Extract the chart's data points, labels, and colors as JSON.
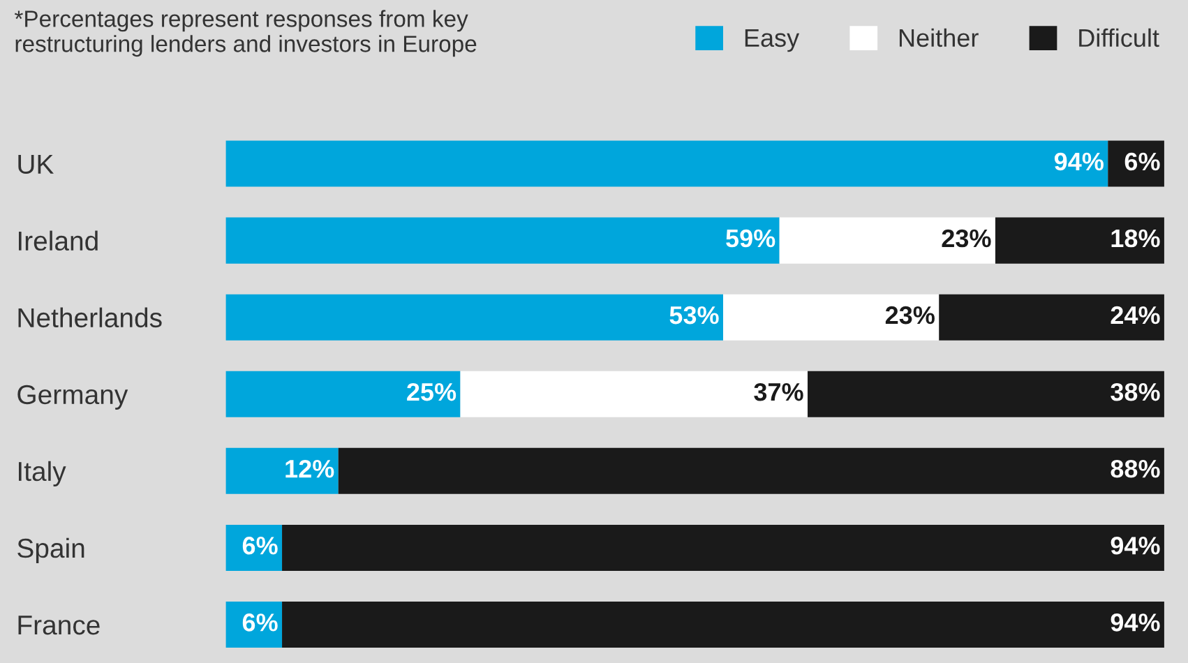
{
  "chart_data": {
    "type": "bar",
    "orientation": "horizontal",
    "stacked": true,
    "legend": "top right",
    "grid": false,
    "annotations": [
      "*Percentages represent responses from key\nrestructuring lenders and investors in Europe"
    ],
    "categories": [
      "UK",
      "Ireland",
      "Netherlands",
      "Germany",
      "Italy",
      "Spain",
      "France"
    ],
    "series": [
      {
        "name": "Easy",
        "color": "#00a6dc",
        "values": [
          94,
          59,
          53,
          25,
          12,
          6,
          6
        ],
        "value_labels": [
          "94%",
          "59%",
          "53%",
          "25%",
          "12%",
          "6%",
          "6%"
        ]
      },
      {
        "name": "Neither",
        "color": "#ffffff",
        "values": [
          0,
          23,
          23,
          37,
          0,
          0,
          0
        ],
        "value_labels": [
          null,
          "23%",
          "23%",
          "37%",
          null,
          null,
          null
        ]
      },
      {
        "name": "Difficult",
        "color": "#1a1a1a",
        "values": [
          6,
          18,
          24,
          38,
          88,
          94,
          94
        ],
        "value_labels": [
          "6%",
          "18%",
          "24%",
          "38%",
          "88%",
          "94%",
          "94%"
        ]
      }
    ]
  }
}
